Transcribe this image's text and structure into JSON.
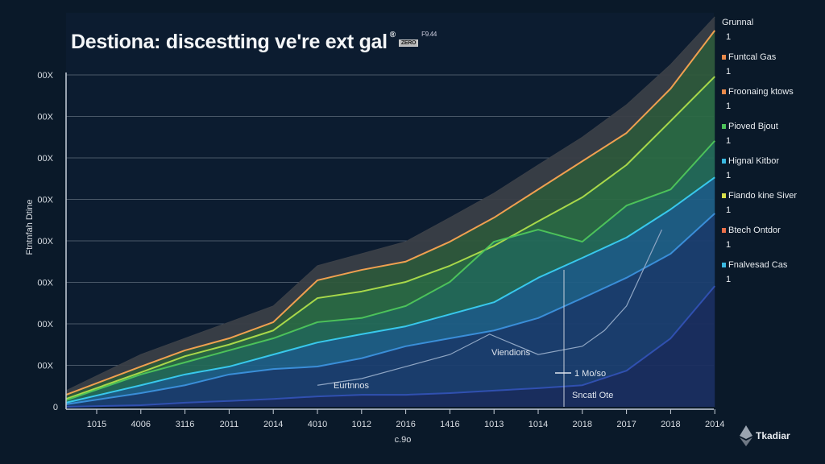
{
  "title": {
    "text": "Destiona: discestting ve're ext gal",
    "mark": "®",
    "badge": "ZERO",
    "suffix": "F9.44"
  },
  "legend": [
    {
      "label": "Grunnal",
      "value": "1",
      "color": ""
    },
    {
      "label": "Funtcal Gas",
      "value": "1",
      "color": "#e8894a"
    },
    {
      "label": "Froonaing ktows",
      "value": "1",
      "color": "#e8894a"
    },
    {
      "label": "Pioved Bjout",
      "value": "1",
      "color": "#4cc25a"
    },
    {
      "label": "Hignal Kitbor",
      "value": "1",
      "color": "#3ab8e0"
    },
    {
      "label": "Fiando kine Siver",
      "value": "1",
      "color": "#d8e04a"
    },
    {
      "label": "Btech Ontdor",
      "value": "1",
      "color": "#e8704a"
    },
    {
      "label": "Fnalvesad Cas",
      "value": "1",
      "color": "#3ab8e0"
    }
  ],
  "logo": {
    "text": "Tkadiar",
    "icon": "ethereum-diamond-icon"
  },
  "chart_data": {
    "type": "area",
    "title": "Destiona: discestting ve're ext gal",
    "xlabel": "c.9o",
    "ylabel": "Ftntnfah Dtine",
    "categories": [
      "1015",
      "4006",
      "3116",
      "2011",
      "2014",
      "4010",
      "1012",
      "2016",
      "1416",
      "1013",
      "1014",
      "2018",
      "2017",
      "2018",
      "2014"
    ],
    "y_ticks": [
      "0",
      "00X",
      "00X",
      "00X",
      "00X",
      "00X",
      "00X",
      "00X",
      "00X"
    ],
    "ylim": [
      0,
      9.5
    ],
    "grid": true,
    "legend_position": "right",
    "series": [
      {
        "color": "#3b4048",
        "fill": "#3a3f47",
        "values": [
          0.39,
          1.26,
          1.65,
          2.04,
          2.43,
          3.4,
          3.69,
          3.98,
          4.56,
          5.15,
          5.83,
          6.5,
          7.28,
          8.25,
          9.4
        ]
      },
      {
        "color": "#f0a050",
        "fill": "#2f5a3c",
        "values": [
          0.29,
          0.97,
          1.36,
          1.65,
          2.04,
          3.05,
          3.3,
          3.5,
          3.98,
          4.56,
          5.24,
          5.92,
          6.6,
          7.67,
          9.07
        ]
      },
      {
        "color": "#a8d84a",
        "fill": "#2b6a44",
        "values": [
          0.19,
          0.83,
          1.22,
          1.5,
          1.84,
          2.62,
          2.78,
          3.01,
          3.4,
          3.88,
          4.47,
          5.05,
          5.83,
          6.89,
          7.96
        ]
      },
      {
        "color": "#4cc25a",
        "fill": "#246a58",
        "values": [
          0.16,
          0.78,
          1.07,
          1.36,
          1.65,
          2.04,
          2.14,
          2.43,
          3.01,
          3.98,
          4.27,
          3.98,
          4.85,
          5.24,
          6.41
        ]
      },
      {
        "color": "#38c8ec",
        "fill": "#1f5f86",
        "values": [
          0.1,
          0.52,
          0.78,
          0.97,
          1.26,
          1.55,
          1.75,
          1.94,
          2.23,
          2.52,
          3.11,
          3.59,
          4.08,
          4.76,
          5.53
        ]
      },
      {
        "color": "#3a8ed8",
        "fill": "#1b3f70",
        "values": [
          0.06,
          0.33,
          0.52,
          0.78,
          0.91,
          0.97,
          1.17,
          1.46,
          1.65,
          1.84,
          2.14,
          2.62,
          3.11,
          3.69,
          4.66
        ]
      },
      {
        "color": "#3050b0",
        "fill": "#1a2e60",
        "values": [
          0,
          0.04,
          0.1,
          0.14,
          0.19,
          0.25,
          0.29,
          0.29,
          0.33,
          0.39,
          0.45,
          0.52,
          0.87,
          1.65,
          2.91
        ]
      }
    ],
    "annotation_line": {
      "color": "#8fa6c4",
      "points": [
        [
          5,
          0.52
        ],
        [
          6,
          0.68
        ],
        [
          7,
          0.97
        ],
        [
          8,
          1.26
        ],
        [
          8.9,
          1.75
        ],
        [
          10,
          1.26
        ],
        [
          11,
          1.46
        ],
        [
          11.5,
          1.84
        ],
        [
          12,
          2.43
        ],
        [
          12.8,
          4.27
        ]
      ]
    },
    "annotations": [
      "Viendions",
      "1 Mo/so",
      "Sncatl Ote",
      "Eurtnnos"
    ]
  }
}
